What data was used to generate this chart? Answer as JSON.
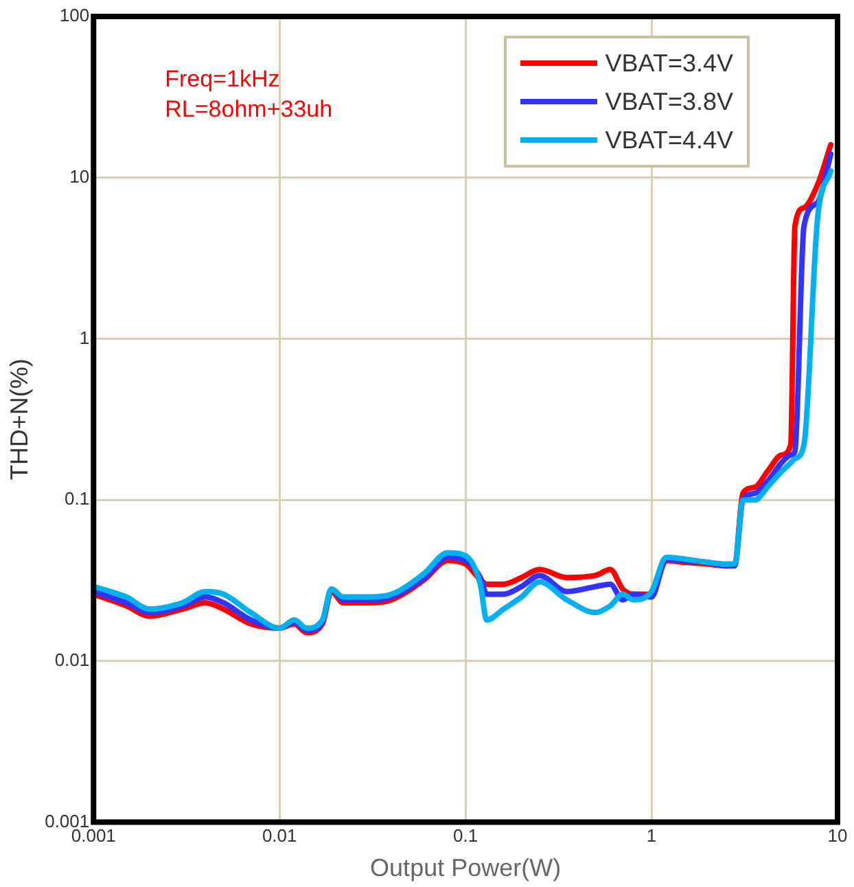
{
  "chart_data": {
    "type": "line",
    "xlabel": "Output Power(W)",
    "ylabel": "THD+N(%)",
    "log": "xy",
    "xlim": [
      0.001,
      10
    ],
    "ylim": [
      0.001,
      100
    ],
    "xticks": [
      0.001,
      0.01,
      0.1,
      1,
      10
    ],
    "yticks": [
      0.001,
      0.01,
      0.1,
      1,
      10,
      100
    ],
    "grid": true,
    "legend": "top right",
    "marker": "none",
    "line_style": "solid",
    "annotations": [
      "Freq=1kHz",
      "RL=8ohm+33uh"
    ],
    "x": [
      0.001,
      0.0015,
      0.002,
      0.003,
      0.004,
      0.005,
      0.007,
      0.01,
      0.012,
      0.014,
      0.017,
      0.019,
      0.022,
      0.03,
      0.04,
      0.06,
      0.08,
      0.1,
      0.12,
      0.13,
      0.16,
      0.2,
      0.25,
      0.35,
      0.5,
      0.6,
      0.7,
      0.8,
      1,
      1.2,
      1.5,
      2,
      2.5,
      2.8,
      3.1,
      3.6,
      4.2,
      5,
      5.6,
      5.9,
      6.6,
      7.8,
      9.2
    ],
    "series": [
      {
        "name": "VBAT=3.4V",
        "color": "#ff0000",
        "values": [
          0.026,
          0.022,
          0.019,
          0.021,
          0.023,
          0.021,
          0.017,
          0.016,
          0.017,
          0.015,
          0.017,
          0.027,
          0.023,
          0.023,
          0.024,
          0.032,
          0.042,
          0.04,
          0.032,
          0.03,
          0.03,
          0.033,
          0.037,
          0.033,
          0.034,
          0.037,
          0.028,
          0.026,
          0.026,
          0.042,
          0.041,
          0.04,
          0.039,
          0.04,
          0.11,
          0.12,
          0.15,
          0.19,
          0.22,
          5,
          6.5,
          9,
          16
        ]
      },
      {
        "name": "VBAT=3.8V",
        "color": "#3333ff",
        "values": [
          0.027,
          0.023,
          0.02,
          0.022,
          0.025,
          0.023,
          0.018,
          0.016,
          0.0175,
          0.0155,
          0.0175,
          0.028,
          0.024,
          0.024,
          0.025,
          0.033,
          0.044,
          0.042,
          0.033,
          0.026,
          0.026,
          0.029,
          0.034,
          0.027,
          0.029,
          0.03,
          0.024,
          0.026,
          0.025,
          0.043,
          0.042,
          0.041,
          0.039,
          0.039,
          0.1,
          0.11,
          0.13,
          0.17,
          0.19,
          0.2,
          5,
          7,
          14
        ]
      },
      {
        "name": "VBAT=4.4V",
        "color": "#00b0f0",
        "values": [
          0.029,
          0.025,
          0.021,
          0.023,
          0.027,
          0.026,
          0.02,
          0.016,
          0.018,
          0.016,
          0.018,
          0.028,
          0.025,
          0.025,
          0.026,
          0.035,
          0.047,
          0.045,
          0.03,
          0.018,
          0.021,
          0.025,
          0.031,
          0.024,
          0.02,
          0.022,
          0.026,
          0.024,
          0.027,
          0.044,
          0.043,
          0.041,
          0.04,
          0.04,
          0.1,
          0.1,
          0.12,
          0.15,
          0.17,
          0.18,
          0.22,
          5.5,
          11
        ]
      }
    ]
  }
}
